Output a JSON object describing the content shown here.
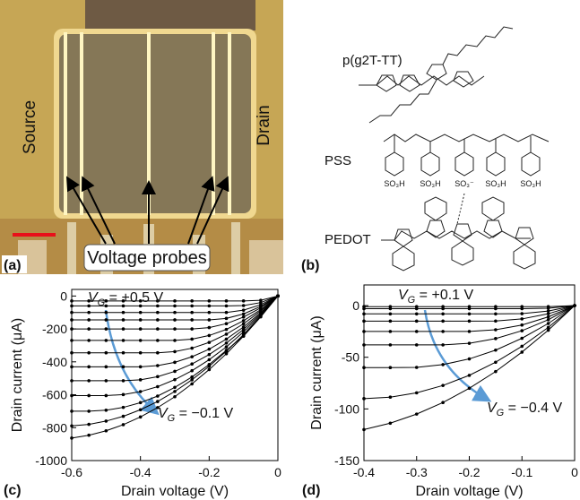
{
  "panel_a": {
    "label": "(a)",
    "source": "Source",
    "drain": "Drain",
    "callout": "Voltage probes"
  },
  "panel_b": {
    "label": "(b)",
    "polymers": [
      "p(g2T-TT)",
      "PSS",
      "PEDOT"
    ],
    "groups": [
      "SO₃H",
      "SO₃H",
      "SO₃⁻",
      "SO₃H",
      "SO₃H"
    ]
  },
  "chart_data": [
    {
      "type": "line",
      "panel_label": "(c)",
      "xlabel": "Drain voltage (V)",
      "ylabel": "Drain current (μA)",
      "x": [
        -0.6,
        -0.55,
        -0.5,
        -0.45,
        -0.4,
        -0.35,
        -0.3,
        -0.25,
        -0.2,
        -0.15,
        -0.1,
        -0.05,
        0
      ],
      "xlim": [
        -0.6,
        0
      ],
      "xticks": [
        -0.6,
        -0.4,
        -0.2,
        0
      ],
      "ylim": [
        -1000,
        40
      ],
      "yticks": [
        0,
        -200,
        -400,
        -600,
        -800,
        -1000
      ],
      "series": [
        {
          "color": "#000000",
          "values": [
            -30,
            -30,
            -30,
            -30,
            -30,
            -30,
            -30,
            -30,
            -30,
            -30,
            -30,
            -26,
            0
          ]
        },
        {
          "color": "#000000",
          "values": [
            -60,
            -60,
            -60,
            -60,
            -60,
            -60,
            -60,
            -60,
            -60,
            -60,
            -58,
            -40,
            0
          ]
        },
        {
          "color": "#000000",
          "values": [
            -100,
            -100,
            -100,
            -100,
            -100,
            -100,
            -100,
            -100,
            -100,
            -100,
            -86,
            -53,
            0
          ]
        },
        {
          "color": "#000000",
          "values": [
            -145,
            -145,
            -145,
            -145,
            -145,
            -145,
            -145,
            -145,
            -145,
            -136,
            -109,
            -63,
            0
          ]
        },
        {
          "color": "#000000",
          "values": [
            -200,
            -200,
            -200,
            -200,
            -200,
            -200,
            -200,
            -200,
            -192,
            -168,
            -128,
            -72,
            0
          ]
        },
        {
          "color": "#000000",
          "values": [
            -270,
            -270,
            -270,
            -270,
            -270,
            -270,
            -270,
            -262,
            -240,
            -203,
            -150,
            -83,
            0
          ]
        },
        {
          "color": "#000000",
          "values": [
            -345,
            -345,
            -345,
            -345,
            -345,
            -345,
            -338,
            -317,
            -282,
            -232,
            -169,
            -91,
            0
          ]
        },
        {
          "color": "#000000",
          "values": [
            -430,
            -430,
            -430,
            -430,
            -430,
            -423,
            -403,
            -369,
            -323,
            -262,
            -188,
            -101,
            0
          ]
        },
        {
          "color": "#000000",
          "values": [
            -515,
            -515,
            -515,
            -515,
            -509,
            -490,
            -458,
            -413,
            -356,
            -286,
            -203,
            -108,
            0
          ]
        },
        {
          "color": "#000000",
          "values": [
            -605,
            -605,
            -605,
            -599,
            -581,
            -551,
            -508,
            -454,
            -387,
            -309,
            -218,
            -115,
            0
          ]
        },
        {
          "color": "#000000",
          "values": [
            -700,
            -700,
            -694,
            -677,
            -648,
            -608,
            -555,
            -492,
            -416,
            -330,
            -243,
            -122,
            0
          ]
        },
        {
          "color": "#000000",
          "values": [
            -789,
            -780,
            -760,
            -731,
            -691,
            -641,
            -580,
            -509,
            -427,
            -336,
            -234,
            -122,
            0
          ]
        },
        {
          "color": "#000000",
          "values": [
            -863,
            -846,
            -819,
            -782,
            -735,
            -678,
            -612,
            -534,
            -447,
            -351,
            -244,
            -127,
            0
          ]
        }
      ],
      "annotations": [
        {
          "symbol": "V",
          "subscript": "G",
          "value": " = +0.5 V"
        },
        {
          "symbol": "V",
          "subscript": "G",
          "value": " = −0.1 V"
        }
      ]
    },
    {
      "type": "line",
      "panel_label": "(d)",
      "xlabel": "Drain voltage (V)",
      "ylabel": "Drain current (μA)",
      "x": [
        -0.4,
        -0.35,
        -0.3,
        -0.25,
        -0.2,
        -0.15,
        -0.1,
        -0.05,
        0
      ],
      "xlim": [
        -0.4,
        0
      ],
      "xticks": [
        -0.4,
        -0.3,
        -0.2,
        -0.1,
        0
      ],
      "ylim": [
        -150,
        20
      ],
      "yticks": [
        0,
        -50,
        -100,
        -150
      ],
      "series": [
        {
          "color": "#000000",
          "values": [
            -1,
            -1,
            -1,
            -1,
            -1,
            -1,
            -1,
            -1,
            0
          ]
        },
        {
          "color": "#000000",
          "values": [
            -3,
            -3,
            -3,
            -3,
            -3,
            -3,
            -3,
            -2.6,
            0
          ]
        },
        {
          "color": "#000000",
          "values": [
            -8,
            -8,
            -8,
            -8,
            -8,
            -8,
            -7.8,
            -5.3,
            0
          ]
        },
        {
          "color": "#000000",
          "values": [
            -15,
            -15,
            -15,
            -15,
            -15,
            -14.9,
            -12.9,
            -7.9,
            0
          ]
        },
        {
          "color": "#000000",
          "values": [
            -25,
            -25,
            -25,
            -25,
            -25,
            -23.4,
            -18.8,
            -10.9,
            0
          ]
        },
        {
          "color": "#000000",
          "values": [
            -38,
            -38,
            -38,
            -38,
            -36.5,
            -31.9,
            -24.3,
            -13.7,
            0
          ]
        },
        {
          "color": "#000000",
          "values": [
            -60,
            -60,
            -59.8,
            -57.1,
            -51.6,
            -43.1,
            -31.6,
            -17.3,
            0
          ]
        },
        {
          "color": "#000000",
          "values": [
            -90,
            -88.6,
            -84.4,
            -77.3,
            -67.5,
            -54.8,
            -39.4,
            -21.1,
            0
          ]
        },
        {
          "color": "#000000",
          "values": [
            -120,
            -113.8,
            -105,
            -93.8,
            -80,
            -63.8,
            -45,
            -23.8,
            0
          ]
        }
      ],
      "annotations": [
        {
          "symbol": "V",
          "subscript": "G",
          "value": " = +0.1 V"
        },
        {
          "symbol": "V",
          "subscript": "G",
          "value": " = −0.4 V"
        }
      ]
    }
  ]
}
